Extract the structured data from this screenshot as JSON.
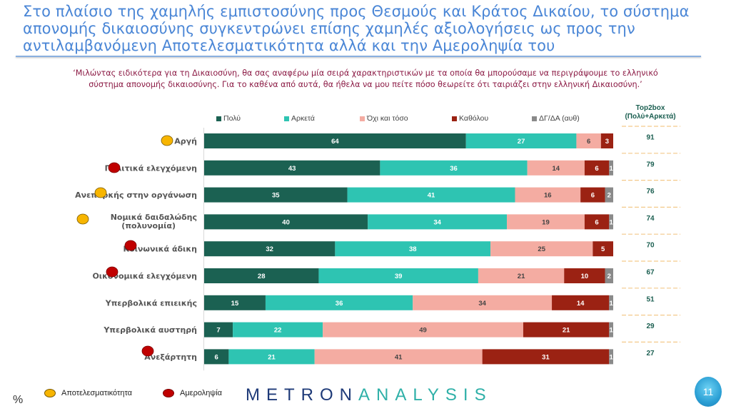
{
  "headline": "Στο πλαίσιο της χαμηλής εμπιστοσύνης προς Θεσμούς και Κράτος Δικαίου, το σύστημα απονομής δικαιοσύνης συγκεντρώνει επίσης χαμηλές αξιολογήσεις ως προς την  αντιλαμβανόμενη Αποτελεσματικότητα αλλά και την Αμεροληψία του",
  "subtitle_line1": "‘Μιλώντας ειδικότερα για τη Δικαιοσύνη, θα σας αναφέρω μία σειρά χαρακτηριστικών με τα οποία θα μπορούσαμε να περιγράψουμε το ελληνικό",
  "subtitle_line2": "σύστημα απονομής δικαιοσύνης. Για το καθένα από αυτά, θα ήθελα να μου πείτε πόσο θεωρείτε ότι ταιριάζει στην ελληνική Δικαιοσύνη.’",
  "top2box_header_line1": "Top2box",
  "top2box_header_line2": "(Πολύ+Αρκετά)",
  "footer": {
    "percent_sign": "%",
    "legend_effectiveness": "Αποτελεσματικότητα",
    "legend_impartiality": "Αμεροληψία",
    "brand_part1": "METRON",
    "brand_part2": "ANALYSIS",
    "page_number": "11"
  },
  "colors": {
    "effectiveness_dot": "#f7b500",
    "impartiality_dot": "#c00000",
    "headline": "#4a86d6",
    "subtitle": "#8b1a44"
  },
  "chart_data": {
    "type": "bar",
    "orientation": "horizontal-stacked-100",
    "unit": "%",
    "xlim": [
      0,
      100
    ],
    "legend_position": "top",
    "categories": [
      "Αργή",
      "Πολιτικά ελεγχόμενη",
      "Ανεπαρκής στην οργάνωση",
      "Νομικά δαιδαλώδης (πολυνομία)",
      "Κοινωνικά άδικη",
      "Οικονομικά ελεγχόμενη",
      "Υπερβολικά επιεικής",
      "Υπερβολικά αυστηρή",
      "Ανεξάρτητη"
    ],
    "category_dimension": [
      "effectiveness",
      "impartiality",
      "effectiveness",
      "effectiveness",
      "impartiality",
      "impartiality",
      "none",
      "none",
      "impartiality"
    ],
    "series": [
      {
        "name": "Πολύ",
        "color": "#1b6152",
        "label_color": "#ffffff",
        "values": [
          64,
          43,
          35,
          40,
          32,
          28,
          15,
          7,
          6
        ]
      },
      {
        "name": "Αρκετά",
        "color": "#2ec4b2",
        "label_color": "#ffffff",
        "values": [
          27,
          36,
          41,
          34,
          38,
          39,
          36,
          22,
          21
        ]
      },
      {
        "name": "Όχι και τόσο",
        "color": "#f4aca2",
        "label_color": "#444444",
        "values": [
          6,
          14,
          16,
          19,
          25,
          21,
          34,
          49,
          41
        ]
      },
      {
        "name": "Καθόλου",
        "color": "#9b2213",
        "label_color": "#ffffff",
        "values": [
          3,
          6,
          6,
          6,
          5,
          10,
          14,
          21,
          31
        ]
      },
      {
        "name": "ΔΓ/ΔΑ (αυθ)",
        "color": "#8a8a8a",
        "label_color": "#ffffff",
        "values": [
          0,
          1,
          2,
          1,
          0,
          2,
          1,
          1,
          1
        ]
      }
    ],
    "top2box": [
      91,
      79,
      76,
      74,
      70,
      67,
      51,
      29,
      27
    ]
  }
}
